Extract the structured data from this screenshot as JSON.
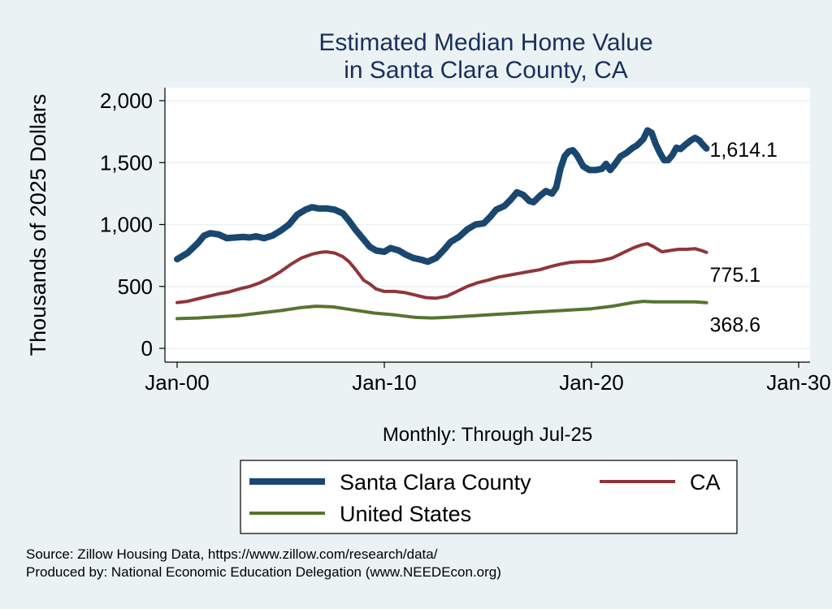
{
  "chart_data": {
    "type": "line",
    "title": [
      "Estimated Median Home Value",
      "in Santa Clara County, CA"
    ],
    "xlabel": "Monthly: Through Jul-25",
    "ylabel": "Thousands of 2025 Dollars",
    "xlim": [
      2000,
      2030
    ],
    "ylim": [
      0,
      2000
    ],
    "x_ticks": [
      {
        "value": 2000,
        "label": "Jan-00"
      },
      {
        "value": 2010,
        "label": "Jan-10"
      },
      {
        "value": 2020,
        "label": "Jan-20"
      },
      {
        "value": 2030,
        "label": "Jan-30"
      }
    ],
    "y_ticks": [
      {
        "value": 0,
        "label": "0"
      },
      {
        "value": 500,
        "label": "500"
      },
      {
        "value": 1000,
        "label": "1,000"
      },
      {
        "value": 1500,
        "label": "1,500"
      },
      {
        "value": 2000,
        "label": "2,000"
      }
    ],
    "grid": true,
    "legend_position": "bottom",
    "series": [
      {
        "name": "Santa Clara County",
        "color": "#1a476f",
        "end_label": "1,614.1",
        "points": [
          [
            2000.0,
            720
          ],
          [
            2000.5,
            770
          ],
          [
            2001.0,
            850
          ],
          [
            2001.3,
            910
          ],
          [
            2001.6,
            930
          ],
          [
            2002.0,
            920
          ],
          [
            2002.4,
            890
          ],
          [
            2002.8,
            895
          ],
          [
            2003.2,
            900
          ],
          [
            2003.5,
            895
          ],
          [
            2003.8,
            905
          ],
          [
            2004.2,
            890
          ],
          [
            2004.6,
            910
          ],
          [
            2005.0,
            950
          ],
          [
            2005.4,
            1000
          ],
          [
            2005.8,
            1080
          ],
          [
            2006.2,
            1120
          ],
          [
            2006.5,
            1140
          ],
          [
            2006.8,
            1130
          ],
          [
            2007.2,
            1130
          ],
          [
            2007.6,
            1120
          ],
          [
            2008.0,
            1090
          ],
          [
            2008.3,
            1030
          ],
          [
            2008.6,
            960
          ],
          [
            2009.0,
            880
          ],
          [
            2009.3,
            820
          ],
          [
            2009.6,
            790
          ],
          [
            2010.0,
            780
          ],
          [
            2010.3,
            810
          ],
          [
            2010.7,
            790
          ],
          [
            2011.0,
            760
          ],
          [
            2011.4,
            730
          ],
          [
            2011.8,
            715
          ],
          [
            2012.1,
            700
          ],
          [
            2012.5,
            730
          ],
          [
            2012.9,
            800
          ],
          [
            2013.2,
            860
          ],
          [
            2013.6,
            900
          ],
          [
            2014.0,
            960
          ],
          [
            2014.4,
            1000
          ],
          [
            2014.8,
            1010
          ],
          [
            2015.1,
            1060
          ],
          [
            2015.4,
            1120
          ],
          [
            2015.8,
            1150
          ],
          [
            2016.1,
            1200
          ],
          [
            2016.4,
            1260
          ],
          [
            2016.7,
            1240
          ],
          [
            2017.0,
            1190
          ],
          [
            2017.2,
            1180
          ],
          [
            2017.5,
            1230
          ],
          [
            2017.8,
            1270
          ],
          [
            2018.1,
            1250
          ],
          [
            2018.3,
            1300
          ],
          [
            2018.5,
            1450
          ],
          [
            2018.7,
            1550
          ],
          [
            2018.9,
            1590
          ],
          [
            2019.1,
            1600
          ],
          [
            2019.3,
            1560
          ],
          [
            2019.6,
            1470
          ],
          [
            2019.9,
            1440
          ],
          [
            2020.2,
            1440
          ],
          [
            2020.5,
            1450
          ],
          [
            2020.7,
            1490
          ],
          [
            2020.9,
            1440
          ],
          [
            2021.1,
            1480
          ],
          [
            2021.4,
            1550
          ],
          [
            2021.7,
            1580
          ],
          [
            2022.0,
            1620
          ],
          [
            2022.2,
            1640
          ],
          [
            2022.5,
            1690
          ],
          [
            2022.7,
            1760
          ],
          [
            2022.9,
            1740
          ],
          [
            2023.1,
            1650
          ],
          [
            2023.3,
            1580
          ],
          [
            2023.5,
            1520
          ],
          [
            2023.7,
            1520
          ],
          [
            2023.9,
            1560
          ],
          [
            2024.1,
            1620
          ],
          [
            2024.3,
            1610
          ],
          [
            2024.5,
            1640
          ],
          [
            2024.8,
            1680
          ],
          [
            2025.0,
            1700
          ],
          [
            2025.2,
            1680
          ],
          [
            2025.4,
            1640
          ],
          [
            2025.55,
            1614
          ]
        ]
      },
      {
        "name": "CA",
        "color": "#90353b",
        "end_label": "775.1",
        "points": [
          [
            2000.0,
            370
          ],
          [
            2000.5,
            380
          ],
          [
            2001.0,
            400
          ],
          [
            2001.5,
            420
          ],
          [
            2002.0,
            440
          ],
          [
            2002.5,
            455
          ],
          [
            2003.0,
            480
          ],
          [
            2003.5,
            500
          ],
          [
            2004.0,
            530
          ],
          [
            2004.5,
            570
          ],
          [
            2005.0,
            620
          ],
          [
            2005.5,
            680
          ],
          [
            2006.0,
            730
          ],
          [
            2006.5,
            760
          ],
          [
            2006.9,
            775
          ],
          [
            2007.2,
            780
          ],
          [
            2007.6,
            770
          ],
          [
            2008.0,
            740
          ],
          [
            2008.3,
            700
          ],
          [
            2008.6,
            640
          ],
          [
            2009.0,
            550
          ],
          [
            2009.3,
            520
          ],
          [
            2009.6,
            480
          ],
          [
            2010.0,
            460
          ],
          [
            2010.5,
            460
          ],
          [
            2011.0,
            450
          ],
          [
            2011.5,
            430
          ],
          [
            2012.0,
            410
          ],
          [
            2012.5,
            405
          ],
          [
            2013.0,
            420
          ],
          [
            2013.5,
            460
          ],
          [
            2014.0,
            500
          ],
          [
            2014.5,
            530
          ],
          [
            2015.0,
            550
          ],
          [
            2015.5,
            575
          ],
          [
            2016.0,
            590
          ],
          [
            2016.5,
            605
          ],
          [
            2017.0,
            620
          ],
          [
            2017.5,
            635
          ],
          [
            2018.0,
            660
          ],
          [
            2018.5,
            680
          ],
          [
            2019.0,
            695
          ],
          [
            2019.5,
            700
          ],
          [
            2020.0,
            700
          ],
          [
            2020.5,
            710
          ],
          [
            2021.0,
            730
          ],
          [
            2021.5,
            770
          ],
          [
            2022.0,
            810
          ],
          [
            2022.4,
            835
          ],
          [
            2022.7,
            845
          ],
          [
            2023.0,
            820
          ],
          [
            2023.4,
            780
          ],
          [
            2023.8,
            790
          ],
          [
            2024.2,
            800
          ],
          [
            2024.6,
            800
          ],
          [
            2025.0,
            805
          ],
          [
            2025.3,
            790
          ],
          [
            2025.55,
            775
          ]
        ]
      },
      {
        "name": "United States",
        "color": "#55752f",
        "end_label": "368.6",
        "points": [
          [
            2000.0,
            240
          ],
          [
            2001.0,
            245
          ],
          [
            2002.0,
            255
          ],
          [
            2003.0,
            265
          ],
          [
            2004.0,
            285
          ],
          [
            2005.0,
            305
          ],
          [
            2006.0,
            330
          ],
          [
            2006.7,
            340
          ],
          [
            2007.5,
            335
          ],
          [
            2008.5,
            310
          ],
          [
            2009.5,
            285
          ],
          [
            2010.5,
            270
          ],
          [
            2011.5,
            250
          ],
          [
            2012.3,
            245
          ],
          [
            2013.0,
            250
          ],
          [
            2014.0,
            260
          ],
          [
            2015.0,
            270
          ],
          [
            2016.0,
            280
          ],
          [
            2017.0,
            290
          ],
          [
            2018.0,
            300
          ],
          [
            2019.0,
            310
          ],
          [
            2020.0,
            320
          ],
          [
            2021.0,
            340
          ],
          [
            2022.0,
            370
          ],
          [
            2022.5,
            380
          ],
          [
            2023.0,
            375
          ],
          [
            2024.0,
            375
          ],
          [
            2025.0,
            375
          ],
          [
            2025.55,
            369
          ]
        ]
      }
    ],
    "legend": {
      "entries": [
        {
          "name": "Santa Clara County",
          "color": "#1a476f",
          "weight": "thick"
        },
        {
          "name": "CA",
          "color": "#90353b",
          "weight": "medium"
        },
        {
          "name": "United States",
          "color": "#55752f",
          "weight": "medium"
        }
      ]
    },
    "notes": [
      "Source: Zillow Housing Data, https://www.zillow.com/research/data/",
      "Produced by: National Economic Education Delegation (www.NEEDEcon.org)"
    ]
  }
}
